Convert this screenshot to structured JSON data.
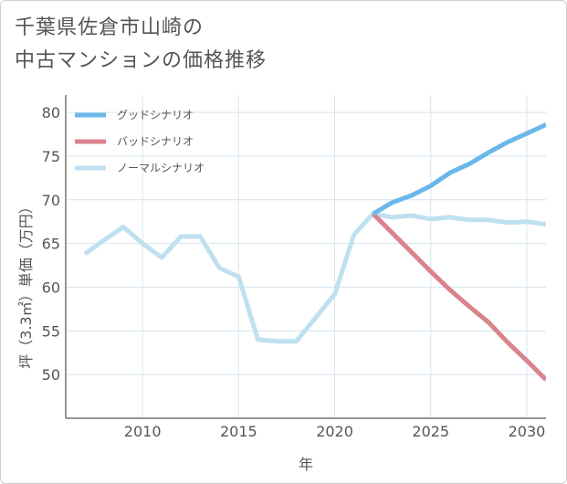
{
  "title": {
    "line1": "千葉県佐倉市山崎の",
    "line2": "中古マンションの価格推移"
  },
  "colors": {
    "good": "#6bb7ea",
    "bad": "#d9848c",
    "normal": "#bfe0ef",
    "grid": "#d6e4ef",
    "axis": "#555555"
  },
  "chart_data": {
    "type": "line",
    "title": "千葉県佐倉市山崎の中古マンションの価格推移",
    "xlabel": "年",
    "ylabel": "坪（3.3㎡）単価（万円）",
    "xlim": [
      2006,
      2031
    ],
    "ylim": [
      45,
      82
    ],
    "xticks": [
      2010,
      2015,
      2020,
      2025,
      2030
    ],
    "yticks": [
      50,
      55,
      60,
      65,
      70,
      75,
      80
    ],
    "legend_position": "top-left",
    "series": [
      {
        "name": "グッドシナリオ",
        "key": "good",
        "x": [
          2022,
          2023,
          2024,
          2025,
          2026,
          2027,
          2028,
          2029,
          2030,
          2031
        ],
        "values": [
          68.4,
          69.7,
          70.5,
          71.6,
          73.1,
          74.1,
          75.4,
          76.6,
          77.6,
          78.6
        ]
      },
      {
        "name": "バッドシナリオ",
        "key": "bad",
        "x": [
          2022,
          2023,
          2024,
          2025,
          2026,
          2027,
          2028,
          2029,
          2030,
          2031
        ],
        "values": [
          68.4,
          66.2,
          64.0,
          61.8,
          59.7,
          57.8,
          56.0,
          53.7,
          51.6,
          49.4
        ]
      },
      {
        "name": "ノーマルシナリオ",
        "key": "normal",
        "x": [
          2007,
          2008,
          2009,
          2010,
          2011,
          2012,
          2013,
          2014,
          2015,
          2016,
          2017,
          2018,
          2019,
          2020,
          2021,
          2022,
          2023,
          2024,
          2025,
          2026,
          2027,
          2028,
          2029,
          2030,
          2031
        ],
        "values": [
          63.8,
          65.4,
          66.9,
          65.0,
          63.4,
          65.8,
          65.8,
          62.2,
          61.2,
          54.0,
          53.8,
          53.8,
          56.5,
          59.2,
          66.0,
          68.4,
          68.0,
          68.2,
          67.8,
          68.0,
          67.7,
          67.7,
          67.4,
          67.5,
          67.2
        ]
      }
    ]
  }
}
